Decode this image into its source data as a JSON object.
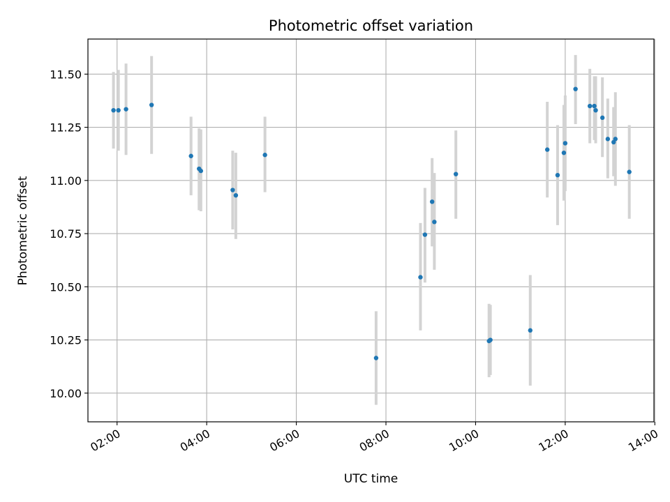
{
  "chart_data": {
    "type": "scatter",
    "title": "Photometric offset variation",
    "xlabel": "UTC time",
    "ylabel": "Photometric offset",
    "x_unit": "hours (UTC)",
    "xlim": [
      1.35,
      13.98
    ],
    "ylim": [
      9.865,
      11.665
    ],
    "grid": true,
    "marker_color": "#1f77b4",
    "errorbar_color": "#d3d3d3",
    "x_ticks": [
      {
        "value": 2,
        "label": "02:00"
      },
      {
        "value": 4,
        "label": "04:00"
      },
      {
        "value": 6,
        "label": "06:00"
      },
      {
        "value": 8,
        "label": "08:00"
      },
      {
        "value": 10,
        "label": "10:00"
      },
      {
        "value": 12,
        "label": "12:00"
      },
      {
        "value": 14,
        "label": "14:00"
      }
    ],
    "y_ticks": [
      {
        "value": 10.0,
        "label": "10.00"
      },
      {
        "value": 10.25,
        "label": "10.25"
      },
      {
        "value": 10.5,
        "label": "10.50"
      },
      {
        "value": 10.75,
        "label": "10.75"
      },
      {
        "value": 11.0,
        "label": "11.00"
      },
      {
        "value": 11.25,
        "label": "11.25"
      },
      {
        "value": 11.5,
        "label": "11.50"
      }
    ],
    "points": [
      {
        "x": 1.92,
        "y": 11.33,
        "lo": 11.15,
        "hi": 11.51
      },
      {
        "x": 2.03,
        "y": 11.33,
        "lo": 11.14,
        "hi": 11.52
      },
      {
        "x": 2.2,
        "y": 11.335,
        "lo": 11.12,
        "hi": 11.55
      },
      {
        "x": 2.77,
        "y": 11.355,
        "lo": 11.125,
        "hi": 11.585
      },
      {
        "x": 3.65,
        "y": 11.115,
        "lo": 10.93,
        "hi": 11.3
      },
      {
        "x": 3.83,
        "y": 11.055,
        "lo": 10.86,
        "hi": 11.245
      },
      {
        "x": 3.87,
        "y": 11.045,
        "lo": 10.855,
        "hi": 11.24
      },
      {
        "x": 4.58,
        "y": 10.955,
        "lo": 10.77,
        "hi": 11.14
      },
      {
        "x": 4.65,
        "y": 10.93,
        "lo": 10.725,
        "hi": 11.13
      },
      {
        "x": 5.3,
        "y": 11.12,
        "lo": 10.945,
        "hi": 11.3
      },
      {
        "x": 7.78,
        "y": 10.165,
        "lo": 9.945,
        "hi": 10.385
      },
      {
        "x": 8.77,
        "y": 10.545,
        "lo": 10.295,
        "hi": 10.8
      },
      {
        "x": 8.87,
        "y": 10.745,
        "lo": 10.52,
        "hi": 10.965
      },
      {
        "x": 9.03,
        "y": 10.9,
        "lo": 10.69,
        "hi": 11.105
      },
      {
        "x": 9.08,
        "y": 10.805,
        "lo": 10.58,
        "hi": 11.035
      },
      {
        "x": 9.56,
        "y": 11.03,
        "lo": 10.82,
        "hi": 11.235
      },
      {
        "x": 10.3,
        "y": 10.245,
        "lo": 10.075,
        "hi": 10.42
      },
      {
        "x": 10.33,
        "y": 10.25,
        "lo": 10.085,
        "hi": 10.415
      },
      {
        "x": 11.22,
        "y": 10.295,
        "lo": 10.035,
        "hi": 10.555
      },
      {
        "x": 11.6,
        "y": 11.145,
        "lo": 10.92,
        "hi": 11.37
      },
      {
        "x": 11.83,
        "y": 11.025,
        "lo": 10.79,
        "hi": 11.26
      },
      {
        "x": 11.97,
        "y": 11.13,
        "lo": 10.905,
        "hi": 11.355
      },
      {
        "x": 12.0,
        "y": 11.175,
        "lo": 10.95,
        "hi": 11.4
      },
      {
        "x": 12.23,
        "y": 11.43,
        "lo": 11.265,
        "hi": 11.59
      },
      {
        "x": 12.55,
        "y": 11.35,
        "lo": 11.175,
        "hi": 11.525
      },
      {
        "x": 12.65,
        "y": 11.35,
        "lo": 11.19,
        "hi": 11.49
      },
      {
        "x": 12.68,
        "y": 11.33,
        "lo": 11.175,
        "hi": 11.49
      },
      {
        "x": 12.83,
        "y": 11.295,
        "lo": 11.11,
        "hi": 11.485
      },
      {
        "x": 12.95,
        "y": 11.195,
        "lo": 11.01,
        "hi": 11.385
      },
      {
        "x": 13.08,
        "y": 11.18,
        "lo": 11.02,
        "hi": 11.345
      },
      {
        "x": 13.12,
        "y": 11.195,
        "lo": 10.975,
        "hi": 11.415
      },
      {
        "x": 13.43,
        "y": 11.04,
        "lo": 10.82,
        "hi": 11.26
      }
    ]
  }
}
